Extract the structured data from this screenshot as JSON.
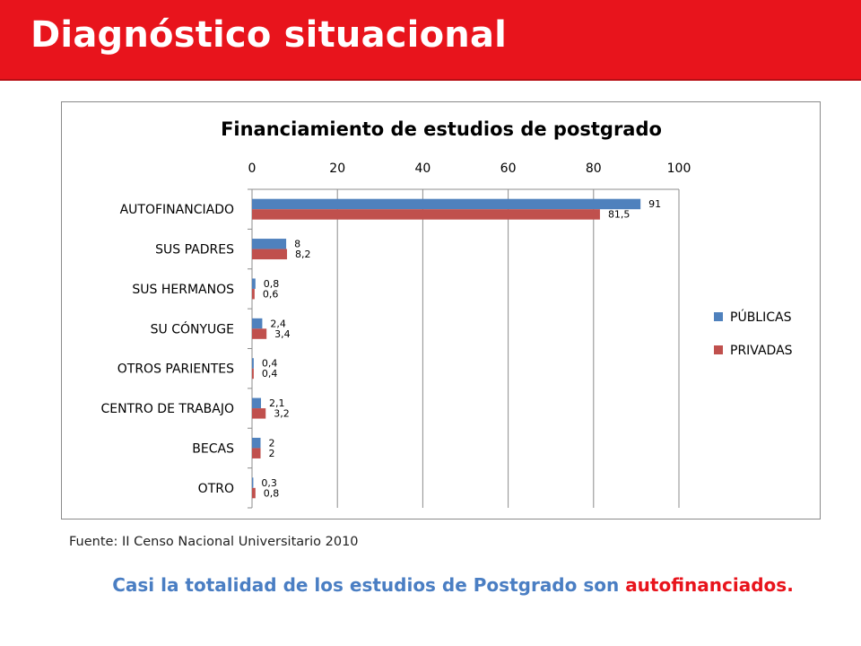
{
  "slide": {
    "title": "Diagnóstico situacional",
    "source": "Fuente: II Censo Nacional Universitario 2010",
    "conclusion_prefix": "Casi la totalidad de los estudios de Postgrado son ",
    "conclusion_highlight": "autofinanciados."
  },
  "colors": {
    "header": "#e8141c",
    "publicas": "#4f81bd",
    "privadas": "#c0504d",
    "conclusion_text": "#4a7ec3",
    "highlight": "#e8141c"
  },
  "chart_data": {
    "type": "bar",
    "orientation": "horizontal",
    "title": "Financiamiento de estudios de postgrado",
    "categories": [
      "AUTOFINANCIADO",
      "SUS PADRES",
      "SUS HERMANOS",
      "SU CÓNYUGE",
      "OTROS PARIENTES",
      "CENTRO DE TRABAJO",
      "BECAS",
      "OTRO"
    ],
    "series": [
      {
        "name": "PÚBLICAS",
        "values": [
          91,
          8,
          0.8,
          2.4,
          0.4,
          2.1,
          2,
          0.3
        ],
        "labels": [
          "91",
          "8",
          "0,8",
          "2,4",
          "0,4",
          "2,1",
          "2",
          "0,3"
        ]
      },
      {
        "name": "PRIVADAS",
        "values": [
          81.5,
          8.2,
          0.6,
          3.4,
          0.4,
          3.2,
          2,
          0.8
        ],
        "labels": [
          "81,5",
          "8,2",
          "0,6",
          "3,4",
          "0,4",
          "3,2",
          "2",
          "0,8"
        ]
      }
    ],
    "xlim": [
      0,
      100
    ],
    "ticks": [
      0,
      20,
      40,
      60,
      80,
      100
    ],
    "tick_labels": [
      "0",
      "20",
      "40",
      "60",
      "80",
      "100"
    ],
    "x_axis_position": "top",
    "grid": true,
    "legend_position": "right"
  }
}
